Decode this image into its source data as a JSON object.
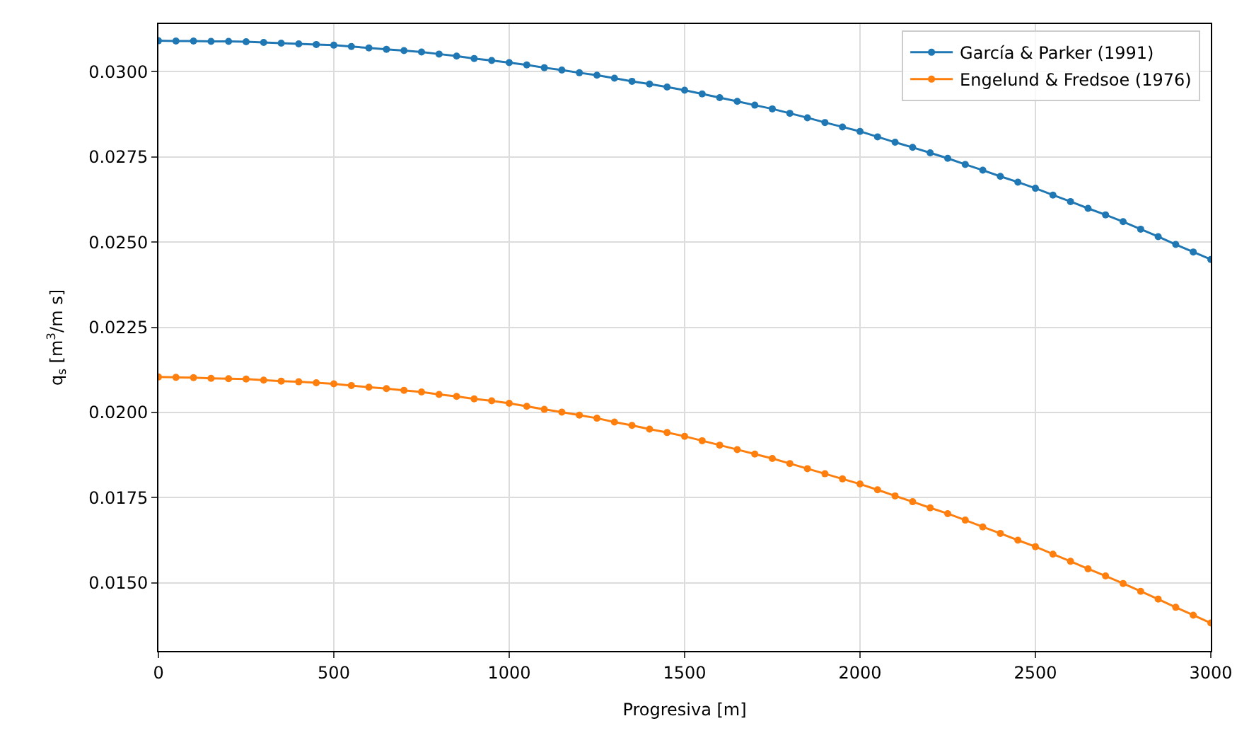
{
  "chart_data": {
    "type": "line",
    "xlabel": "Progresiva [m]",
    "ylabel": "q$_{s}$ [m$^{3}$/m s]",
    "x": [
      0,
      50,
      100,
      150,
      200,
      250,
      300,
      350,
      400,
      450,
      500,
      550,
      600,
      650,
      700,
      750,
      800,
      850,
      900,
      950,
      1000,
      1050,
      1100,
      1150,
      1200,
      1250,
      1300,
      1350,
      1400,
      1450,
      1500,
      1550,
      1600,
      1650,
      1700,
      1750,
      1800,
      1850,
      1900,
      1950,
      2000,
      2050,
      2100,
      2150,
      2200,
      2250,
      2300,
      2350,
      2400,
      2450,
      2500,
      2550,
      2600,
      2650,
      2700,
      2750,
      2800,
      2850,
      2900,
      2950,
      3000
    ],
    "series": [
      {
        "name": "García & Parker (1991)",
        "color": "#1f77b4",
        "values": [
          0.03091,
          0.0309,
          0.0309,
          0.03089,
          0.03089,
          0.03088,
          0.03086,
          0.03084,
          0.03082,
          0.0308,
          0.03078,
          0.03074,
          0.0307,
          0.03066,
          0.03062,
          0.03058,
          0.03052,
          0.03046,
          0.03039,
          0.03033,
          0.03027,
          0.0302,
          0.03012,
          0.03005,
          0.02997,
          0.0299,
          0.02981,
          0.02972,
          0.02964,
          0.02955,
          0.02946,
          0.02935,
          0.02924,
          0.02913,
          0.02902,
          0.02891,
          0.02878,
          0.02865,
          0.02851,
          0.02838,
          0.02825,
          0.02809,
          0.02793,
          0.02778,
          0.02762,
          0.02746,
          0.02728,
          0.02711,
          0.02693,
          0.02676,
          0.02658,
          0.02638,
          0.02619,
          0.02599,
          0.0258,
          0.0256,
          0.02538,
          0.02516,
          0.02493,
          0.02471,
          0.02449
        ]
      },
      {
        "name": "Engelund & Fredsoe (1976)",
        "color": "#ff7f0e",
        "values": [
          0.02104,
          0.02103,
          0.02102,
          0.021,
          0.02099,
          0.02098,
          0.02095,
          0.02092,
          0.0209,
          0.02087,
          0.02084,
          0.02079,
          0.02074,
          0.0207,
          0.02065,
          0.0206,
          0.02053,
          0.02047,
          0.0204,
          0.02034,
          0.02027,
          0.02018,
          0.02009,
          0.02001,
          0.01992,
          0.01983,
          0.01972,
          0.01962,
          0.01951,
          0.01941,
          0.0193,
          0.01917,
          0.01904,
          0.01891,
          0.01878,
          0.01865,
          0.0185,
          0.01835,
          0.0182,
          0.01805,
          0.0179,
          0.01773,
          0.01755,
          0.01738,
          0.0172,
          0.01703,
          0.01684,
          0.01664,
          0.01645,
          0.01625,
          0.01606,
          0.01584,
          0.01563,
          0.01541,
          0.0152,
          0.01498,
          0.01475,
          0.01452,
          0.01428,
          0.01405,
          0.01382
        ]
      }
    ],
    "xlim": [
      0,
      3000
    ],
    "xticks": [
      0,
      500,
      1000,
      1500,
      2000,
      2500,
      3000
    ],
    "ylim": [
      0.013,
      0.0314
    ],
    "yticks": [
      {
        "value": 0.015,
        "label": "0.0150"
      },
      {
        "value": 0.0175,
        "label": "0.0175"
      },
      {
        "value": 0.02,
        "label": "0.0200"
      },
      {
        "value": 0.0225,
        "label": "0.0225"
      },
      {
        "value": 0.025,
        "label": "0.0250"
      },
      {
        "value": 0.0275,
        "label": "0.0275"
      },
      {
        "value": 0.03,
        "label": "0.0300"
      }
    ],
    "grid": true,
    "legend": "top right",
    "marker": "circle",
    "line_style": "solid"
  }
}
